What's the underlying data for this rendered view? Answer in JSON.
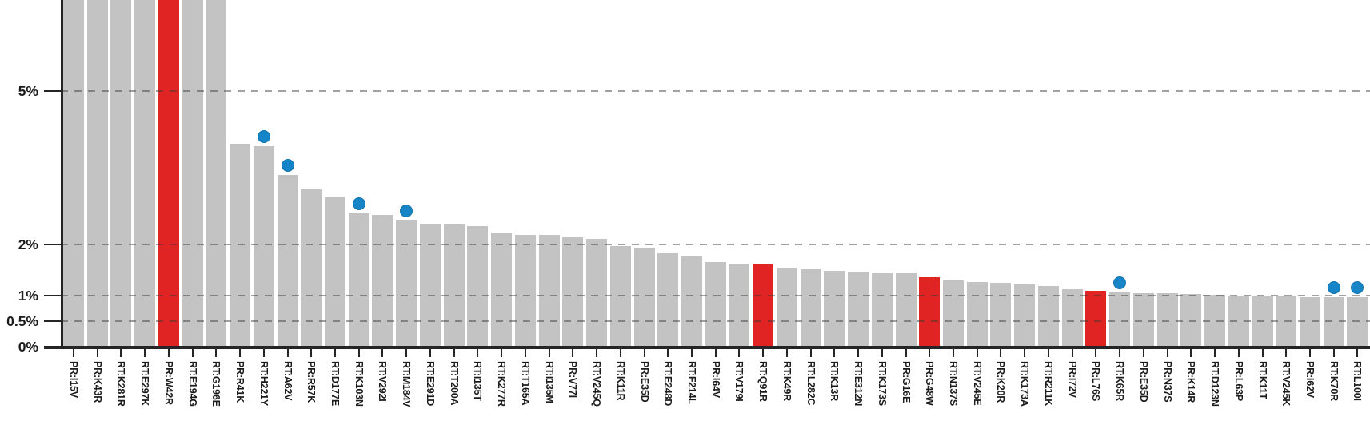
{
  "chart_data": {
    "type": "bar",
    "title": "",
    "xlabel": "",
    "ylabel": "",
    "ylim": [
      0,
      6.76
    ],
    "grid": "horizontal dashed lines at y tick values, drawn over bars",
    "legend_position": "none",
    "clipped_top_note": "first seven bars extend past the top edge of the plot",
    "yticks": [
      {
        "label": "5%",
        "value": 5
      },
      {
        "label": "2%",
        "value": 2
      },
      {
        "label": "1%",
        "value": 1
      },
      {
        "label": "0.5%",
        "value": 0.5
      },
      {
        "label": "0%",
        "value": 0
      }
    ],
    "bars": [
      {
        "label": "PR:I15V",
        "value": 7.0,
        "color": "gray",
        "dot": false,
        "clipped": true
      },
      {
        "label": "PR:K43R",
        "value": 7.0,
        "color": "gray",
        "dot": false,
        "clipped": true
      },
      {
        "label": "RT:K281R",
        "value": 7.0,
        "color": "gray",
        "dot": false,
        "clipped": true
      },
      {
        "label": "RT:E297K",
        "value": 7.0,
        "color": "gray",
        "dot": false,
        "clipped": true
      },
      {
        "label": "PR:W42R",
        "value": 7.0,
        "color": "red",
        "dot": false,
        "clipped": true
      },
      {
        "label": "RT:E194G",
        "value": 7.0,
        "color": "gray",
        "dot": false,
        "clipped": true
      },
      {
        "label": "RT:G196E",
        "value": 7.0,
        "color": "gray",
        "dot": false,
        "clipped": true
      },
      {
        "label": "PR:R41K",
        "value": 3.97,
        "color": "gray",
        "dot": false,
        "clipped": false
      },
      {
        "label": "RT:H221Y",
        "value": 3.92,
        "color": "gray",
        "dot": true,
        "clipped": false
      },
      {
        "label": "RT:A62V",
        "value": 3.35,
        "color": "gray",
        "dot": true,
        "clipped": false
      },
      {
        "label": "PR:R57K",
        "value": 3.07,
        "color": "gray",
        "dot": false,
        "clipped": false
      },
      {
        "label": "RT:D177E",
        "value": 2.91,
        "color": "gray",
        "dot": false,
        "clipped": false
      },
      {
        "label": "RT:K103N",
        "value": 2.61,
        "color": "gray",
        "dot": true,
        "clipped": false
      },
      {
        "label": "RT:V292I",
        "value": 2.58,
        "color": "gray",
        "dot": false,
        "clipped": false
      },
      {
        "label": "RT:M184V",
        "value": 2.46,
        "color": "gray",
        "dot": true,
        "clipped": false
      },
      {
        "label": "RT:E291D",
        "value": 2.41,
        "color": "gray",
        "dot": false,
        "clipped": false
      },
      {
        "label": "RT:T200A",
        "value": 2.38,
        "color": "gray",
        "dot": false,
        "clipped": false
      },
      {
        "label": "RT:I135T",
        "value": 2.36,
        "color": "gray",
        "dot": false,
        "clipped": false
      },
      {
        "label": "RT:K277R",
        "value": 2.21,
        "color": "gray",
        "dot": false,
        "clipped": false
      },
      {
        "label": "RT:T165A",
        "value": 2.19,
        "color": "gray",
        "dot": false,
        "clipped": false
      },
      {
        "label": "RT:I135M",
        "value": 2.18,
        "color": "gray",
        "dot": false,
        "clipped": false
      },
      {
        "label": "PR:V77I",
        "value": 2.13,
        "color": "gray",
        "dot": false,
        "clipped": false
      },
      {
        "label": "RT:V245Q",
        "value": 2.1,
        "color": "gray",
        "dot": false,
        "clipped": false
      },
      {
        "label": "RT:K11R",
        "value": 1.97,
        "color": "gray",
        "dot": false,
        "clipped": false
      },
      {
        "label": "PR:E35D",
        "value": 1.94,
        "color": "gray",
        "dot": false,
        "clipped": false
      },
      {
        "label": "RT:E248D",
        "value": 1.82,
        "color": "gray",
        "dot": false,
        "clipped": false
      },
      {
        "label": "RT:F214L",
        "value": 1.77,
        "color": "gray",
        "dot": false,
        "clipped": false
      },
      {
        "label": "PR:I64V",
        "value": 1.66,
        "color": "gray",
        "dot": false,
        "clipped": false
      },
      {
        "label": "RT:V179I",
        "value": 1.61,
        "color": "gray",
        "dot": false,
        "clipped": false
      },
      {
        "label": "RT:Q91R",
        "value": 1.6,
        "color": "red",
        "dot": false,
        "clipped": false
      },
      {
        "label": "RT:K49R",
        "value": 1.54,
        "color": "gray",
        "dot": false,
        "clipped": false
      },
      {
        "label": "RT:L282C",
        "value": 1.51,
        "color": "gray",
        "dot": false,
        "clipped": false
      },
      {
        "label": "RT:K13R",
        "value": 1.49,
        "color": "gray",
        "dot": false,
        "clipped": false
      },
      {
        "label": "RT:E312N",
        "value": 1.47,
        "color": "gray",
        "dot": false,
        "clipped": false
      },
      {
        "label": "RT:K173S",
        "value": 1.44,
        "color": "gray",
        "dot": false,
        "clipped": false
      },
      {
        "label": "PR:G16E",
        "value": 1.43,
        "color": "gray",
        "dot": false,
        "clipped": false
      },
      {
        "label": "PR:G48W",
        "value": 1.35,
        "color": "red",
        "dot": false,
        "clipped": false
      },
      {
        "label": "RT:N137S",
        "value": 1.29,
        "color": "gray",
        "dot": false,
        "clipped": false
      },
      {
        "label": "RT:V245E",
        "value": 1.26,
        "color": "gray",
        "dot": false,
        "clipped": false
      },
      {
        "label": "PR:K20R",
        "value": 1.25,
        "color": "gray",
        "dot": false,
        "clipped": false
      },
      {
        "label": "RT:K173A",
        "value": 1.22,
        "color": "gray",
        "dot": false,
        "clipped": false
      },
      {
        "label": "RT:R211K",
        "value": 1.19,
        "color": "gray",
        "dot": false,
        "clipped": false
      },
      {
        "label": "PR:I72V",
        "value": 1.13,
        "color": "gray",
        "dot": false,
        "clipped": false
      },
      {
        "label": "PR:L76S",
        "value": 1.1,
        "color": "red",
        "dot": false,
        "clipped": false
      },
      {
        "label": "RT:K65R",
        "value": 1.06,
        "color": "gray",
        "dot": true,
        "clipped": false
      },
      {
        "label": "PR:E35D",
        "value": 1.05,
        "color": "gray",
        "dot": false,
        "clipped": false
      },
      {
        "label": "PR:N37S",
        "value": 1.04,
        "color": "gray",
        "dot": false,
        "clipped": false
      },
      {
        "label": "PR:K14R",
        "value": 1.03,
        "color": "gray",
        "dot": false,
        "clipped": false
      },
      {
        "label": "RT:D123N",
        "value": 1.01,
        "color": "gray",
        "dot": false,
        "clipped": false
      },
      {
        "label": "PR:L63P",
        "value": 1.0,
        "color": "gray",
        "dot": false,
        "clipped": false
      },
      {
        "label": "RT:K11T",
        "value": 0.99,
        "color": "gray",
        "dot": false,
        "clipped": false
      },
      {
        "label": "RT:V245K",
        "value": 0.98,
        "color": "gray",
        "dot": false,
        "clipped": false
      },
      {
        "label": "PR:I62V",
        "value": 0.975,
        "color": "gray",
        "dot": false,
        "clipped": false
      },
      {
        "label": "RT:K70R",
        "value": 0.97,
        "color": "red_dot_no",
        "dot": true,
        "clipped": false
      },
      {
        "label": "RT:L100I",
        "value": 0.96,
        "color": "gray",
        "dot": true,
        "clipped": false
      }
    ]
  },
  "colors": {
    "bar_default": "#c3c3c3",
    "bar_highlight": "#e02424",
    "dot": "#1585c8",
    "axis": "#252525",
    "gridline": "#8c8c8c",
    "label_text": "#1c1c1c",
    "background": "#ffffff"
  }
}
